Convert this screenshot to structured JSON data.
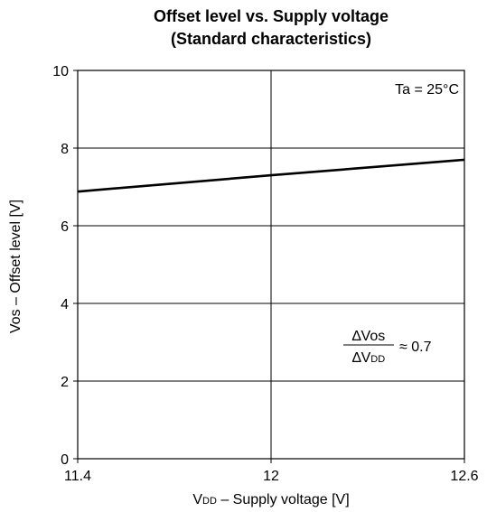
{
  "chart_data": {
    "type": "line",
    "title": [
      "Offset level vs. Supply voltage",
      "(Standard characteristics)"
    ],
    "xlabel": {
      "main": "V",
      "sub": "DD",
      "rest": " – Supply voltage [V]"
    },
    "ylabel": "Vos – Offset level [V]",
    "xlim": [
      11.4,
      12.6
    ],
    "ylim": [
      0,
      10
    ],
    "xticks": [
      "11.4",
      "12",
      "12.6"
    ],
    "xtick_values": [
      11.4,
      12,
      12.6
    ],
    "yticks": [
      "0",
      "2",
      "4",
      "6",
      "8",
      "10"
    ],
    "ytick_values": [
      0,
      2,
      4,
      6,
      8,
      10
    ],
    "grid": true,
    "series": [
      {
        "x": [
          11.4,
          12.0,
          12.6
        ],
        "y": [
          6.88,
          7.3,
          7.7
        ]
      }
    ],
    "annotations": {
      "condition": "Ta = 25°C",
      "ratio_numerator": "∆Vos",
      "ratio_denominator_main": "∆V",
      "ratio_denominator_sub": "DD",
      "ratio_value": "≈ 0.7"
    }
  }
}
